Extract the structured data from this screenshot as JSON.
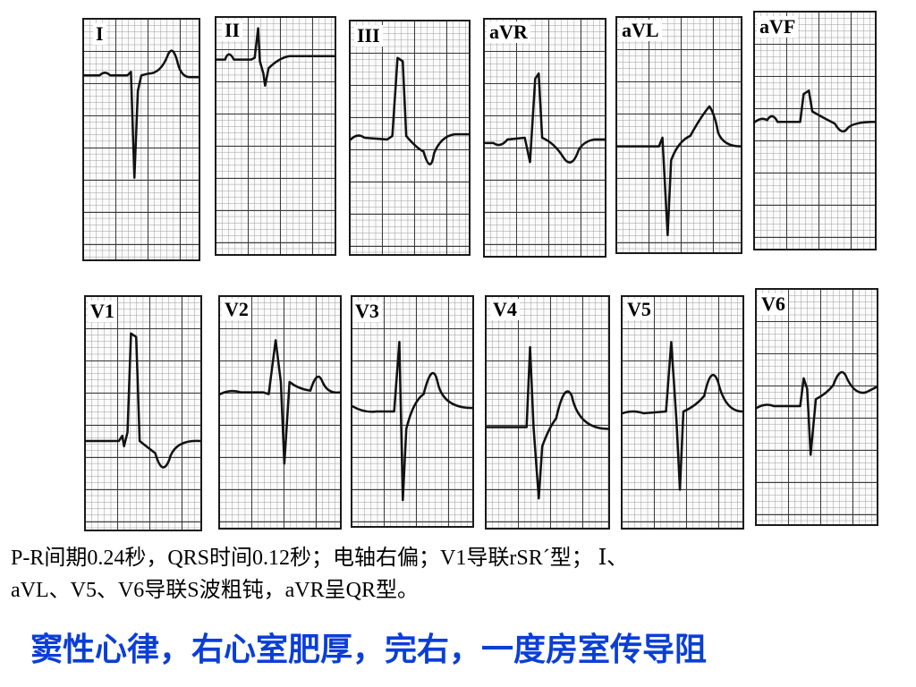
{
  "leads": [
    {
      "name": "I"
    },
    {
      "name": "II"
    },
    {
      "name": "III"
    },
    {
      "name": "aVR"
    },
    {
      "name": "aVL"
    },
    {
      "name": "aVF"
    },
    {
      "name": "V1"
    },
    {
      "name": "V2"
    },
    {
      "name": "V3"
    },
    {
      "name": "V4"
    },
    {
      "name": "V5"
    },
    {
      "name": "V6"
    }
  ],
  "findings": {
    "line1": "P-R间期0.24秒，QRS时间0.12秒；电轴右偏；V1导联rSR´型； Ⅰ、",
    "line2": "aVL、V5、V6导联S波粗钝，aVR呈QR型。"
  },
  "diagnosis": "窦性心律，右心室肥厚，完右，一度房室传导阻",
  "colors": {
    "diagnosis": "#0a3ed6",
    "trace": "#111111"
  }
}
